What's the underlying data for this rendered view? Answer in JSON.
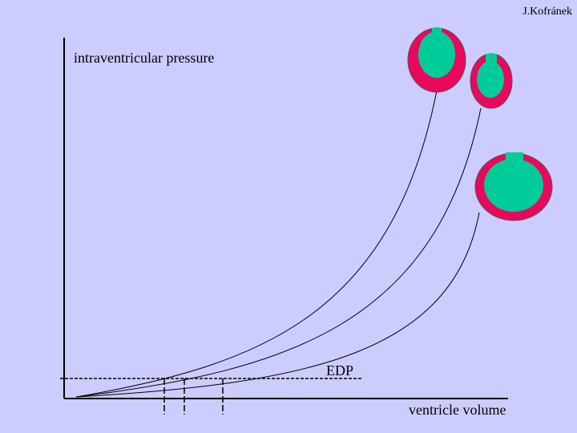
{
  "author": "J.Kofránek",
  "axes": {
    "y_label": "intraventricular pressure",
    "x_label": "ventricle volume"
  },
  "annotations": {
    "edp": "EDP"
  }
}
